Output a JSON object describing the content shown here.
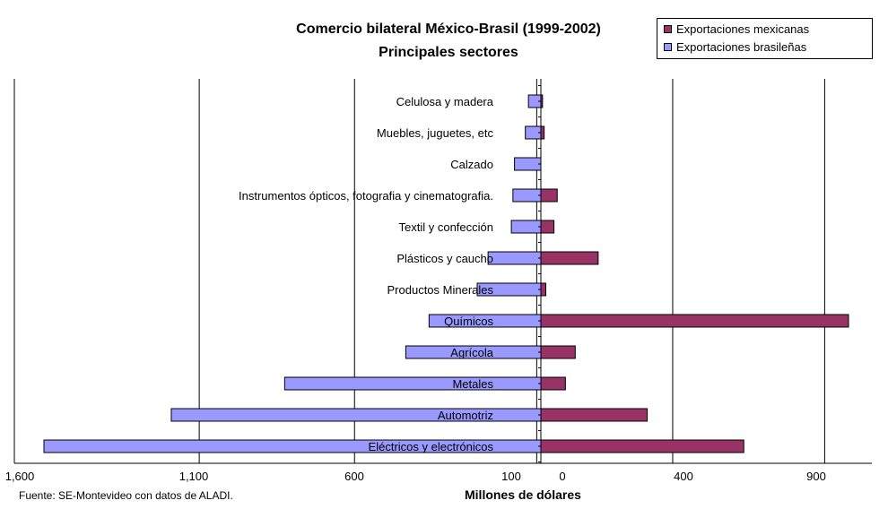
{
  "chart_data": {
    "type": "bar",
    "orientation": "horizontal-diverging",
    "title": "Comercio bilateral México-Brasil (1999-2002)",
    "subtitle": "Principales sectores",
    "xlabel": "Millones de dólares",
    "source": "Fuente: SE-Montevideo con datos de ALADI.",
    "left_ticks": [
      "1,600",
      "1,100",
      "600",
      "100"
    ],
    "right_ticks": [
      "0",
      "400",
      "900"
    ],
    "grid": true,
    "legend_position": "top-right",
    "categories": [
      "Celulosa y madera",
      "Muebles, juguetes, etc",
      "Calzado",
      "Instrumentos ópticos, fotografia y cinematografia.",
      "Textil y confección",
      "Plásticos y caucho",
      "Productos Minerales",
      "Químicos",
      "Agrícola",
      "Metales",
      "Automotriz",
      "Eléctricos y electrónicos"
    ],
    "series": [
      {
        "name": "Exportaciones mexicanas",
        "color": "#993366",
        "values": [
          5,
          10,
          0,
          50,
          40,
          175,
          15,
          940,
          105,
          75,
          325,
          620
        ]
      },
      {
        "name": "Exportaciones brasileñas",
        "color": "#9999ff",
        "values": [
          40,
          50,
          85,
          90,
          95,
          170,
          205,
          360,
          435,
          825,
          1190,
          1600
        ]
      }
    ]
  }
}
